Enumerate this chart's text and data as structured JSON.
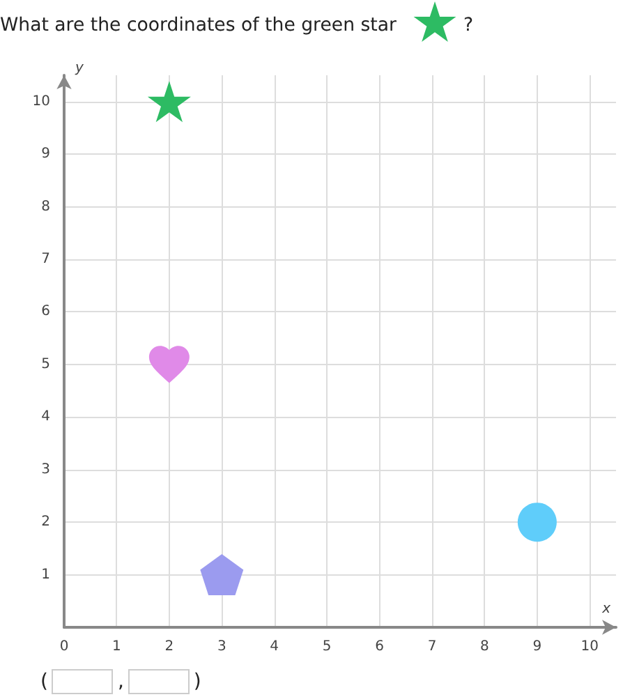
{
  "chart_data": {
    "type": "scatter",
    "title": "What are the coordinates of the green star ?",
    "xlabel": "x",
    "ylabel": "y",
    "series": [
      {
        "x": [
          2
        ],
        "values": [
          10
        ],
        "color": "#2dbb63",
        "marker": "star"
      },
      {
        "x": [
          2
        ],
        "values": [
          5
        ],
        "color": "#e08ae8"
      },
      {
        "x": [
          3
        ],
        "values": [
          1
        ],
        "color": "#9b9bef"
      },
      {
        "x": [
          9
        ],
        "values": [
          2
        ],
        "color": "#5fcdfa",
        "marker": "circle"
      }
    ],
    "xlim": [
      0,
      10.5
    ],
    "ylim": [
      0,
      10.5
    ],
    "xticks": [
      0,
      1,
      2,
      3,
      4,
      5,
      6,
      7,
      8,
      9,
      10
    ],
    "yticks": [
      {
        "value": 0,
        "label": null
      },
      1,
      2,
      3,
      4,
      5,
      6,
      7,
      8,
      9,
      10
    ],
    "grid": true,
    "annotations": [
      "(",
      ",",
      ")"
    ]
  }
}
